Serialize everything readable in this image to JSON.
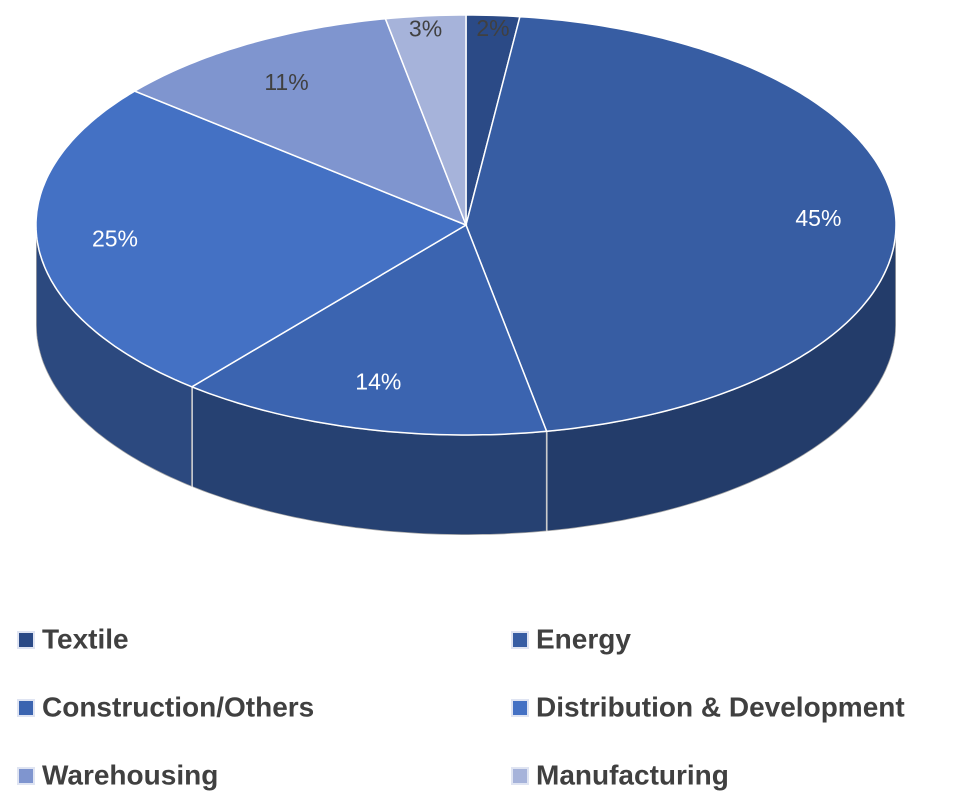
{
  "chart_data": {
    "type": "pie",
    "categories": [
      "Textile",
      "Energy",
      "Construction/Others",
      "Distribution & Development",
      "Warehousing",
      "Manufacturing"
    ],
    "values": [
      2,
      45,
      14,
      25,
      11,
      3
    ],
    "value_labels": [
      "2%",
      "45%",
      "14%",
      "25%",
      "11%",
      "3%"
    ],
    "colors": [
      "#2b4a86",
      "#375da3",
      "#3b64b0",
      "#4471c4",
      "#7f95cf",
      "#a6b3da"
    ],
    "legend": "bottom"
  }
}
